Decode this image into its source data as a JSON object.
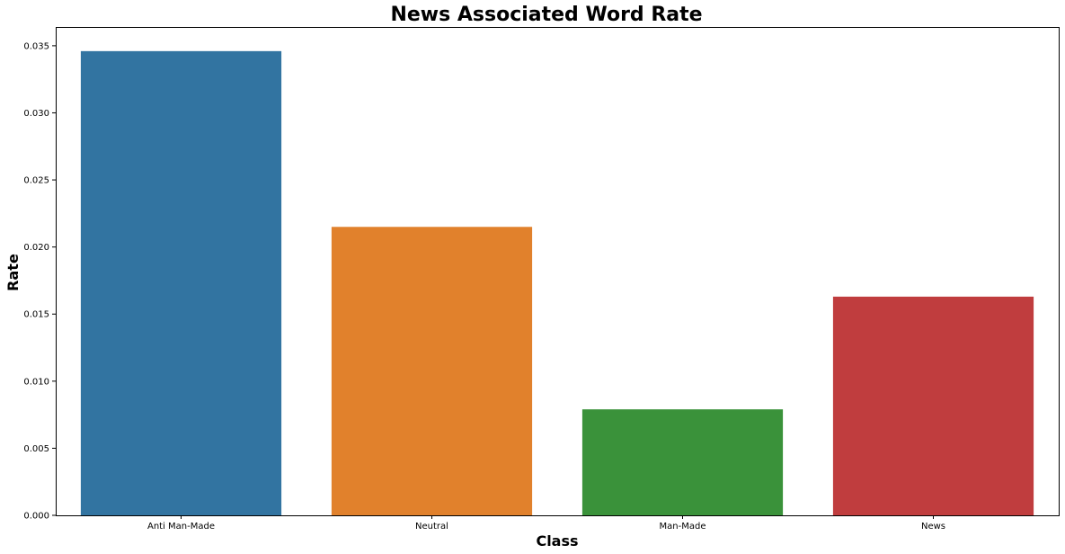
{
  "chart_data": {
    "type": "bar",
    "title": "News Associated Word Rate",
    "xlabel": "Class",
    "ylabel": "Rate",
    "categories": [
      "Anti Man-Made",
      "Neutral",
      "Man-Made",
      "News"
    ],
    "values": [
      0.0346,
      0.0215,
      0.0079,
      0.0163
    ],
    "colors": [
      "#3274a1",
      "#e1812c",
      "#3a923a",
      "#c03d3e"
    ],
    "ylim": [
      0,
      0.0364
    ],
    "yticks": [
      0.0,
      0.005,
      0.01,
      0.015,
      0.02,
      0.025,
      0.03,
      0.035
    ],
    "ytick_labels": [
      "0.000",
      "0.005",
      "0.010",
      "0.015",
      "0.020",
      "0.025",
      "0.030",
      "0.035"
    ],
    "grid": false,
    "legend": false
  }
}
